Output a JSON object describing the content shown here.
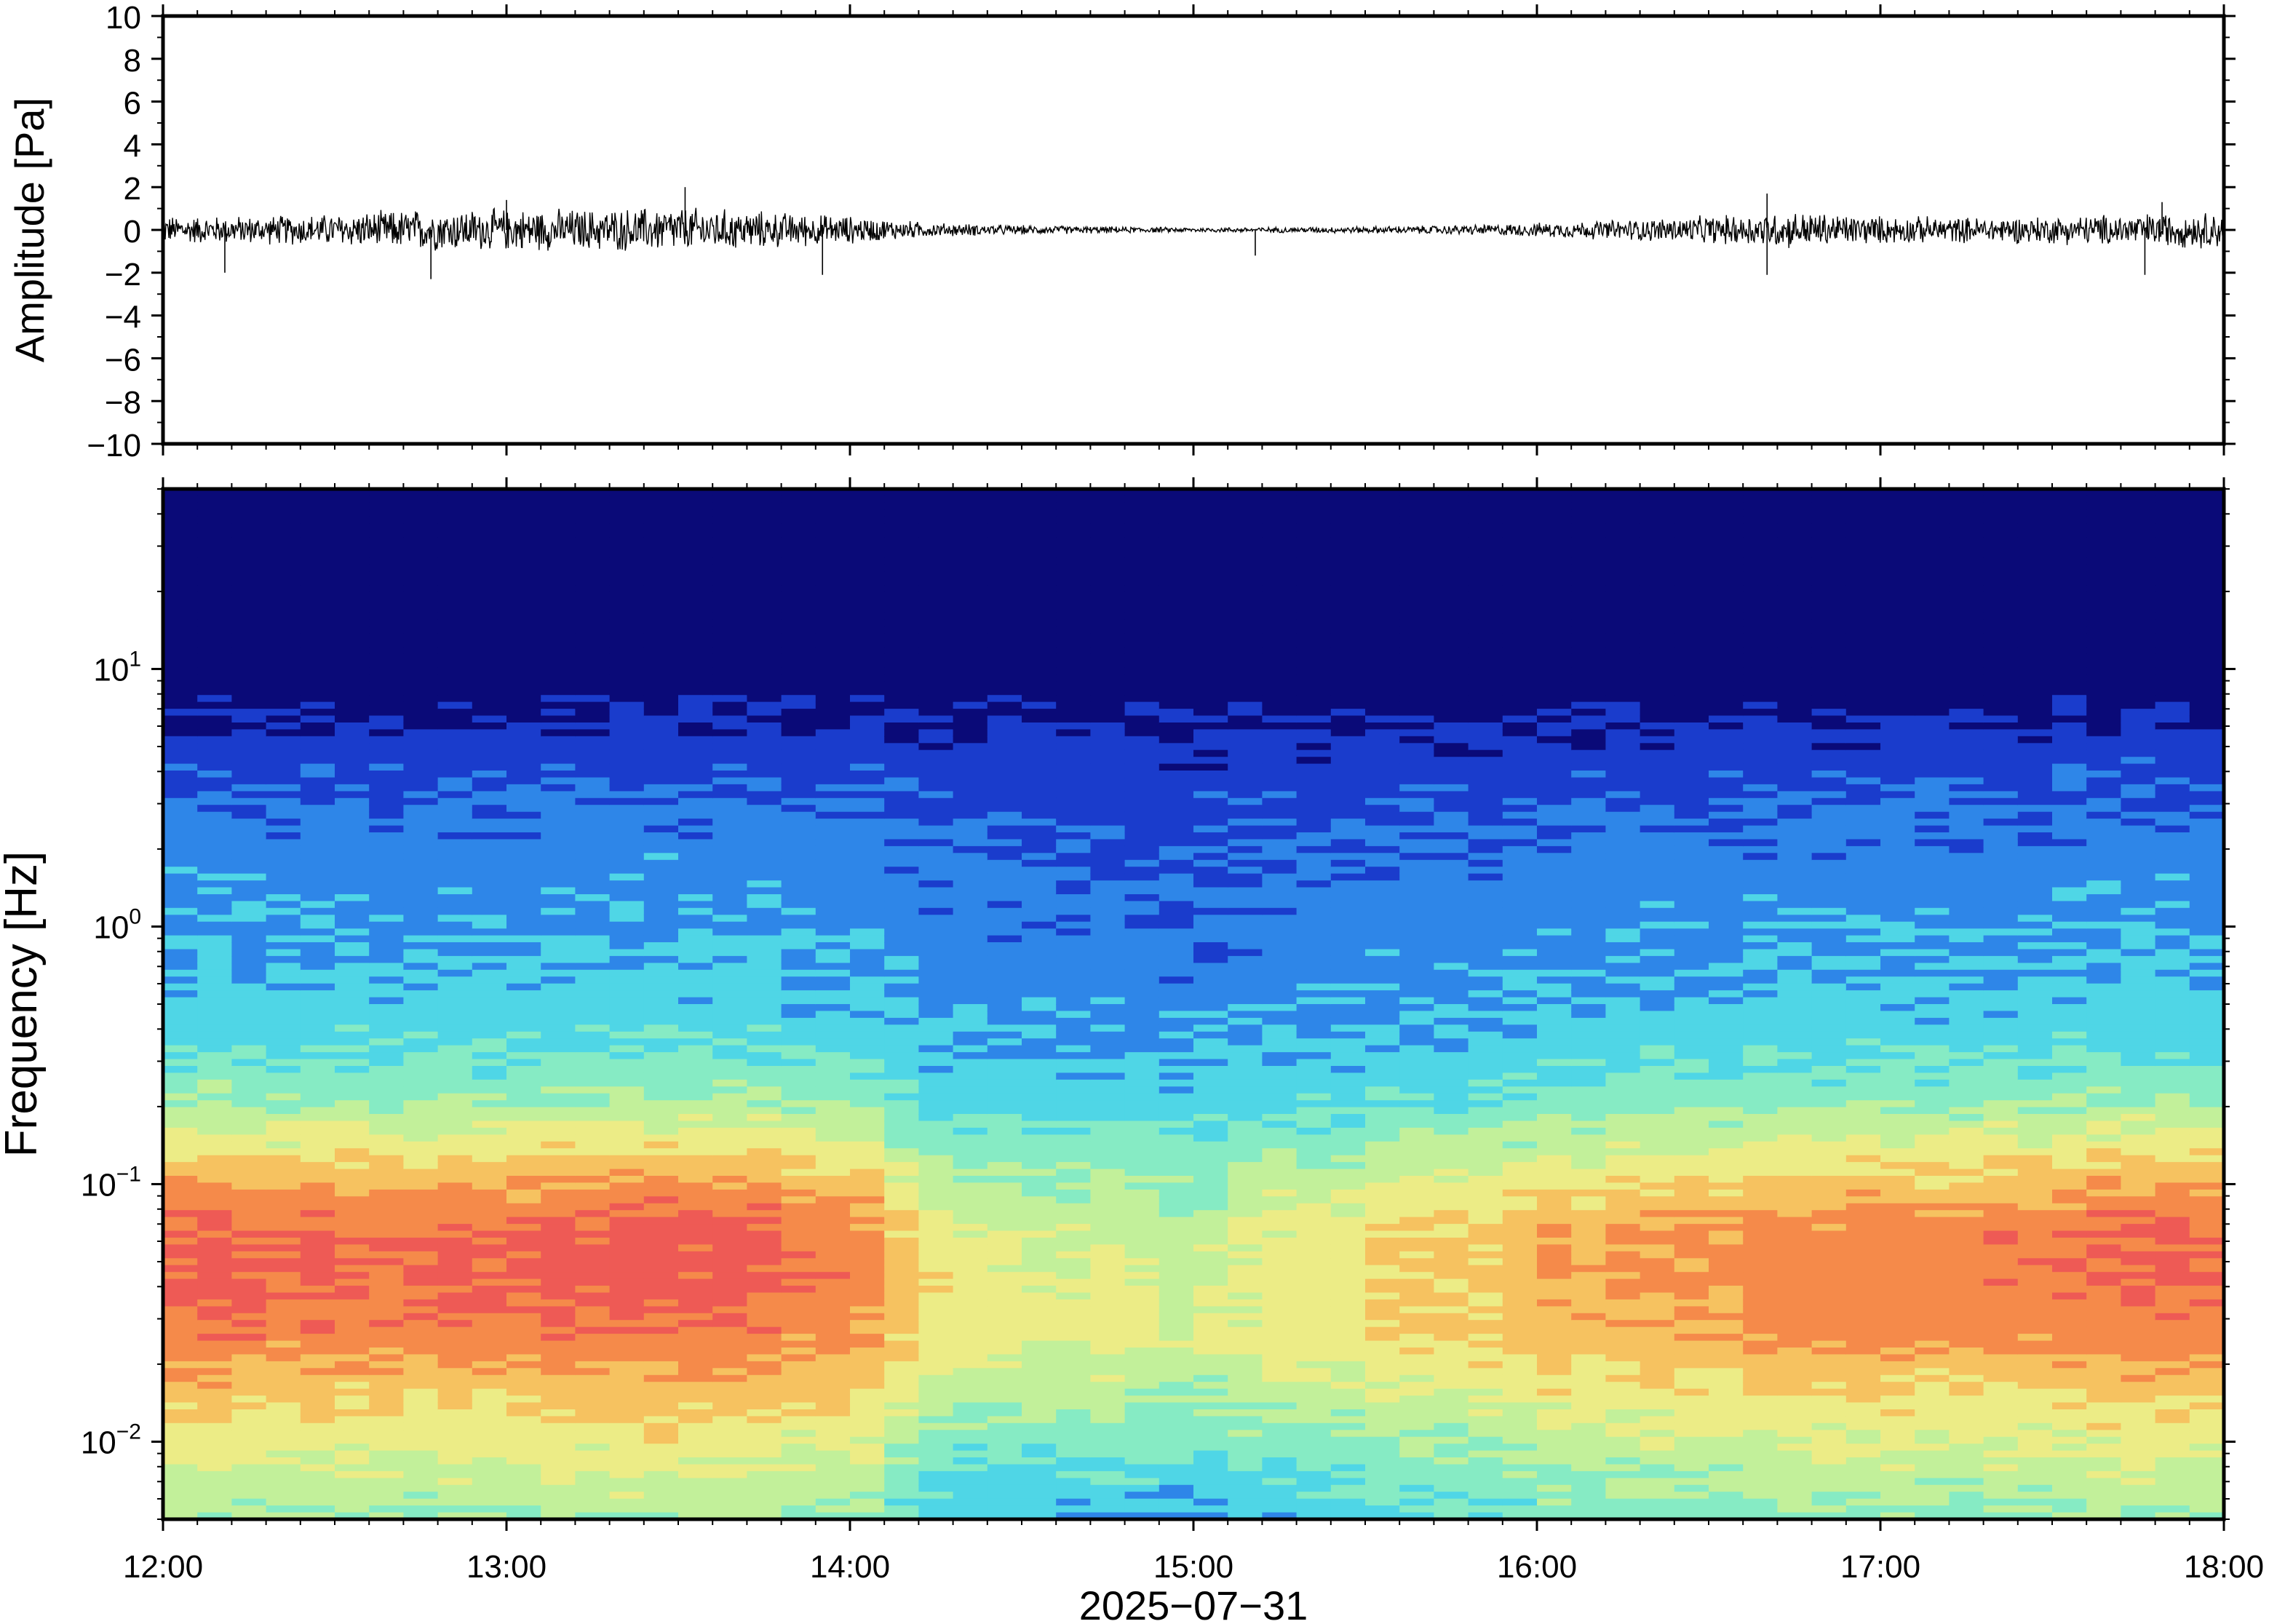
{
  "chart_data": [
    {
      "type": "line",
      "panel": "waveform",
      "ylabel": "Amplitude [Pa]",
      "ylim": [
        -10,
        10
      ],
      "yticks": [
        10,
        8,
        6,
        4,
        2,
        0,
        -2,
        -4,
        -6,
        -8,
        -10
      ],
      "ytick_labels": [
        "10",
        "8",
        "6",
        "4",
        "2",
        "0",
        "−2",
        "−4",
        "−6",
        "−8",
        "−10"
      ],
      "x_range_hours": [
        12,
        18
      ],
      "grid": false,
      "line_color": "#000000",
      "envelope": {
        "time_hours": [
          12.0,
          12.25,
          12.5,
          12.75,
          13.0,
          13.25,
          13.5,
          13.75,
          14.0,
          14.25,
          14.5,
          14.75,
          15.0,
          15.25,
          15.5,
          15.75,
          16.0,
          16.25,
          16.5,
          16.75,
          17.0,
          17.25,
          17.5,
          17.75,
          18.0
        ],
        "half_amplitude_pa": [
          0.6,
          0.6,
          0.7,
          0.9,
          0.9,
          0.9,
          1.0,
          0.8,
          0.6,
          0.3,
          0.2,
          0.15,
          0.1,
          0.12,
          0.15,
          0.2,
          0.3,
          0.45,
          0.6,
          0.8,
          0.6,
          0.55,
          0.6,
          0.7,
          0.8
        ]
      },
      "spikes": [
        {
          "time_hours": 12.18,
          "value_pa": -2.0
        },
        {
          "time_hours": 12.78,
          "value_pa": -2.3
        },
        {
          "time_hours": 13.0,
          "value_pa": 1.4
        },
        {
          "time_hours": 13.52,
          "value_pa": 2.0
        },
        {
          "time_hours": 13.92,
          "value_pa": -2.1
        },
        {
          "time_hours": 15.18,
          "value_pa": -1.2
        },
        {
          "time_hours": 16.67,
          "value_pa": 1.7
        },
        {
          "time_hours": 16.67,
          "value_pa": -2.1
        },
        {
          "time_hours": 17.77,
          "value_pa": -2.1
        },
        {
          "time_hours": 17.82,
          "value_pa": 1.3
        }
      ]
    },
    {
      "type": "heatmap",
      "panel": "spectrogram",
      "ylabel": "Frequency [Hz]",
      "yscale": "log",
      "ylim": [
        0.005,
        50
      ],
      "yticks": [
        10,
        1,
        0.1,
        0.01
      ],
      "ytick_labels": [
        {
          "base": "10",
          "exp": "1"
        },
        {
          "base": "10",
          "exp": "0"
        },
        {
          "base": "10",
          "exp": "−1"
        },
        {
          "base": "10",
          "exp": "−2"
        }
      ],
      "xlabel": "2025−07−31",
      "x_range_hours": [
        12,
        18
      ],
      "xticks": [
        "12:00",
        "13:00",
        "14:00",
        "15:00",
        "16:00",
        "17:00",
        "18:00"
      ],
      "colormap": "rainbow",
      "colors": [
        "#0a0a78",
        "#1a3ccc",
        "#2e86e8",
        "#4fd6e6",
        "#86ebc4",
        "#c2f09a",
        "#ecec86",
        "#f6c260",
        "#f58a4a",
        "#ee5a55",
        "#f2707a"
      ],
      "time_profile": {
        "time_hours": [
          12.0,
          12.5,
          13.0,
          13.5,
          14.0,
          14.25,
          14.5,
          14.75,
          15.0,
          15.25,
          15.5,
          15.75,
          16.0,
          16.5,
          17.0,
          17.5,
          18.0
        ],
        "level": [
          0.95,
          0.97,
          1.0,
          0.98,
          0.9,
          0.45,
          0.35,
          0.3,
          0.25,
          0.35,
          0.45,
          0.55,
          0.65,
          0.8,
          0.85,
          0.88,
          0.95
        ]
      }
    }
  ]
}
